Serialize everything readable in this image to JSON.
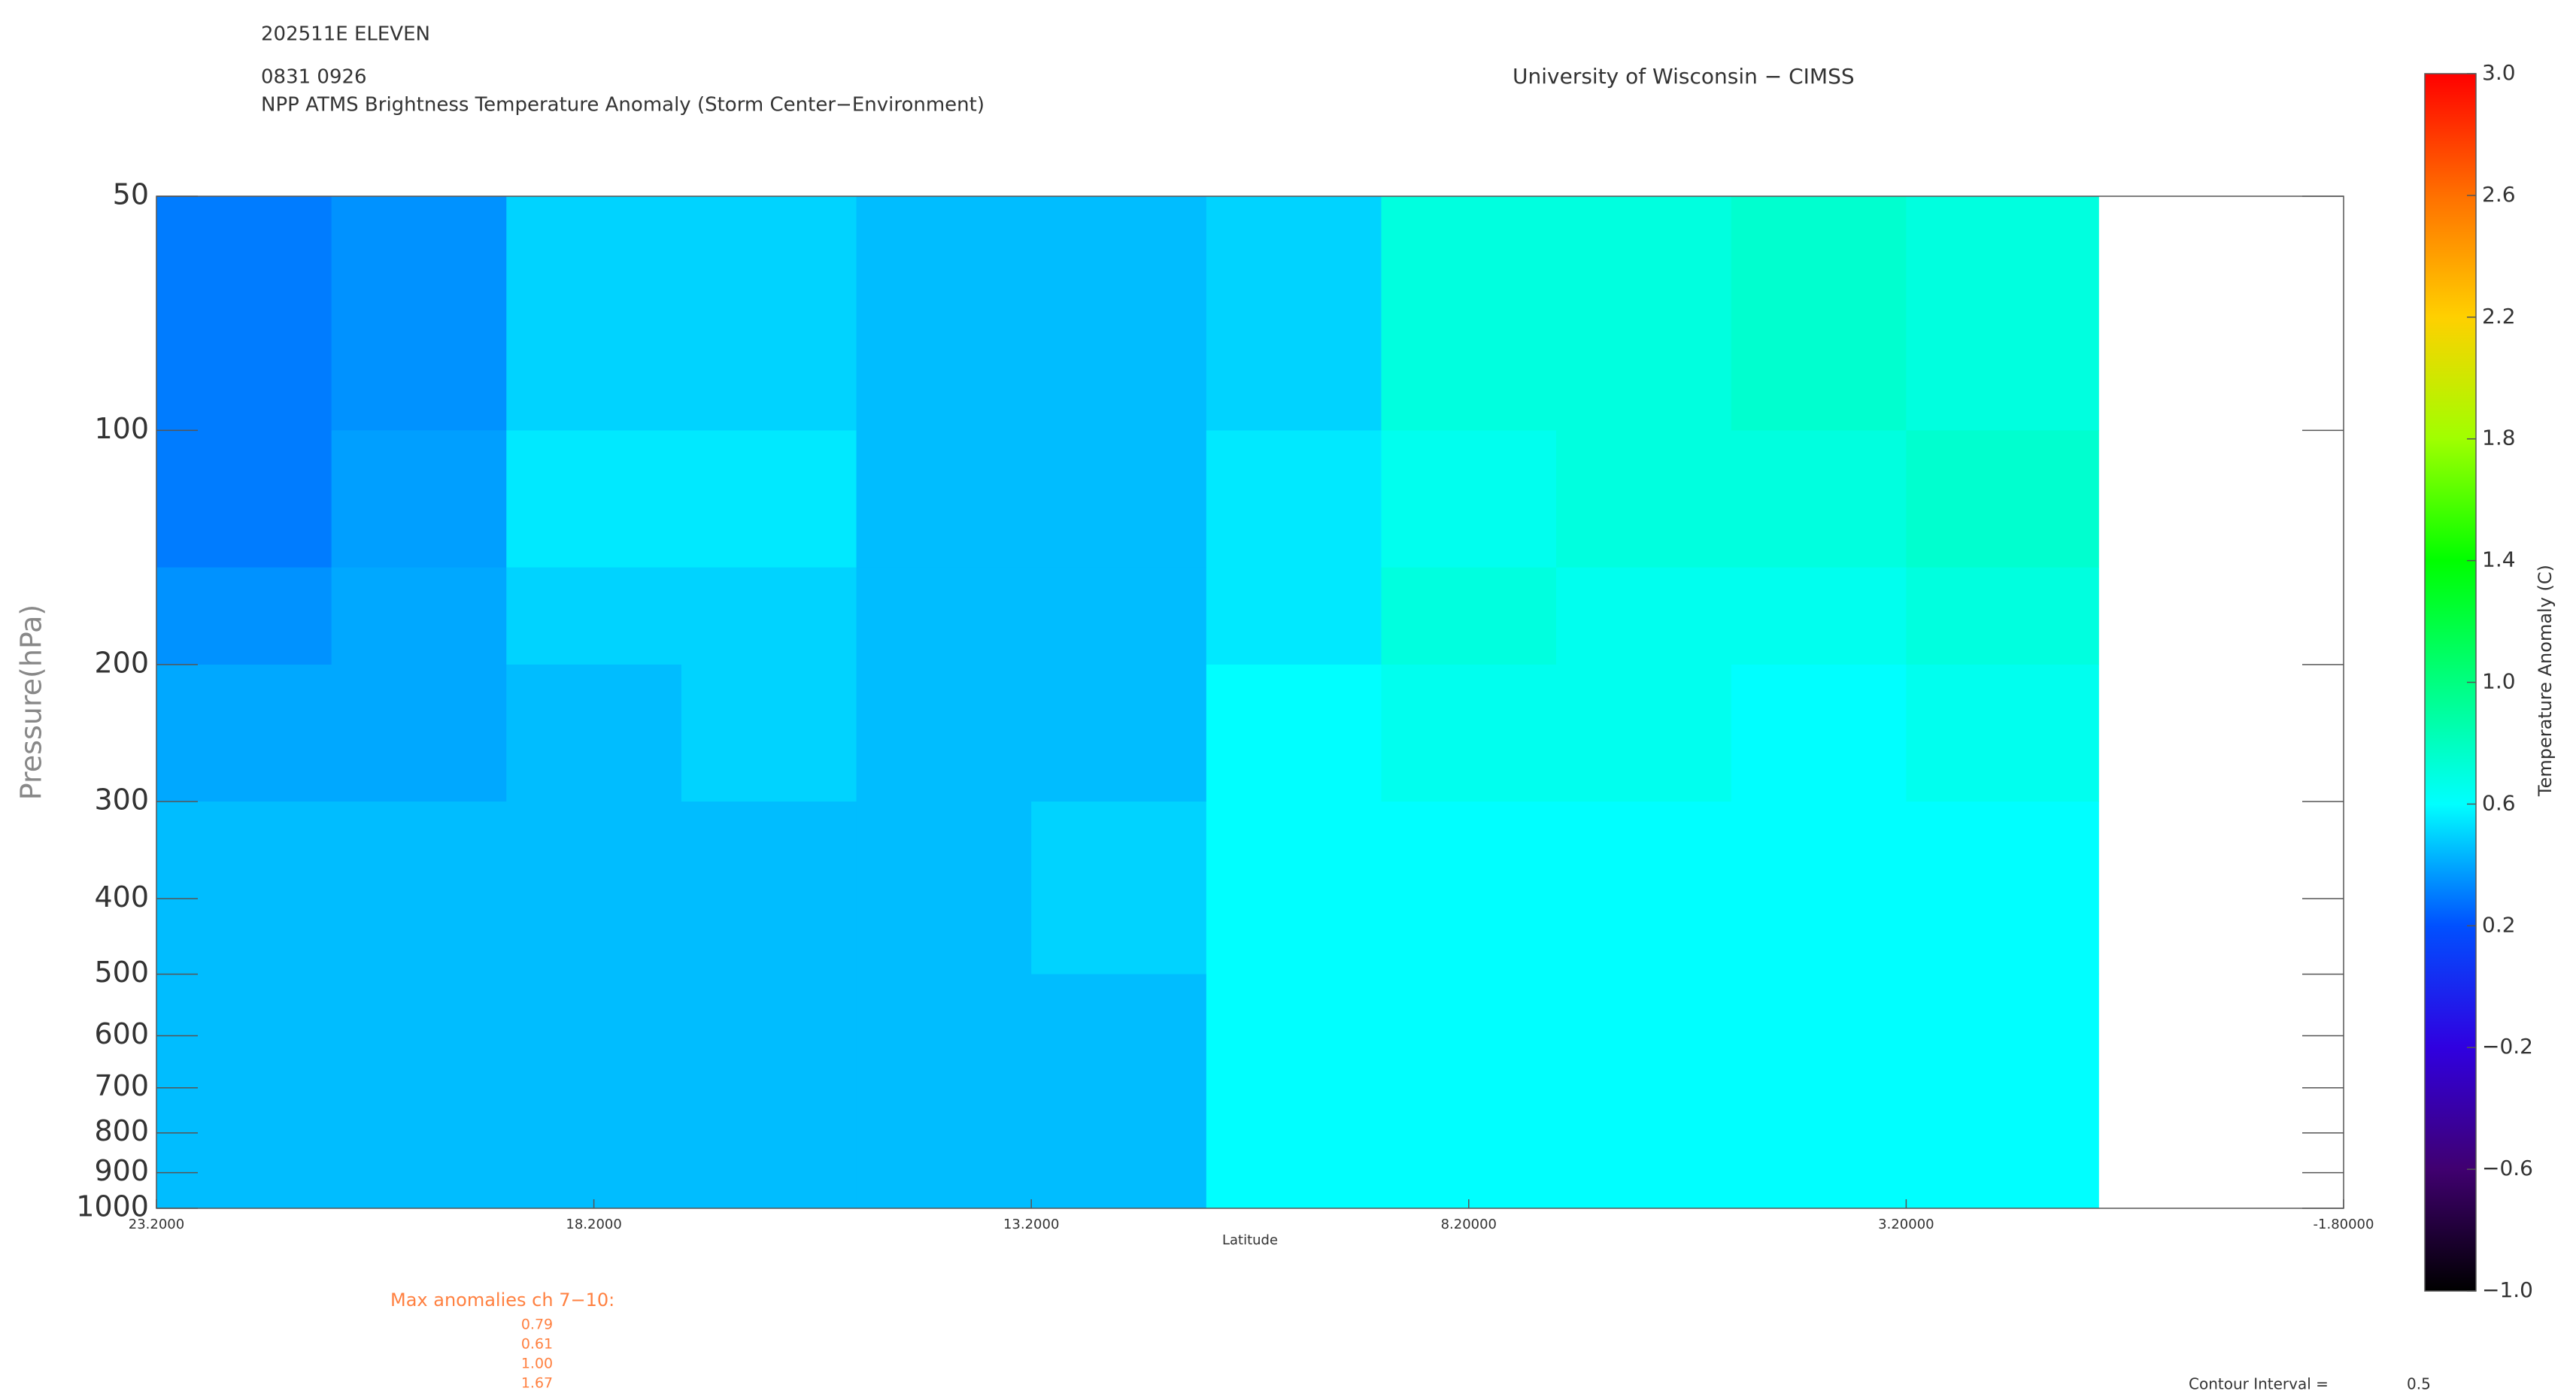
{
  "chart_data": {
    "type": "heatmap",
    "storm": "202511E ELEVEN",
    "date": "0831 0926",
    "title": "NPP ATMS Brightness Temperature Anomaly (Storm Center−Environment)",
    "source": "University of Wisconsin − CIMSS",
    "x_label": "Latitude",
    "y_label": "Pressure(hPa)",
    "colorbar_label": "Temperature Anomaly (C)",
    "xlim": [
      23.2,
      -1.8
    ],
    "xticks": [
      {
        "value": 23.2,
        "label": "23.2000"
      },
      {
        "value": 18.2,
        "label": "18.2000"
      },
      {
        "value": 13.2,
        "label": "13.2000"
      },
      {
        "value": 8.2,
        "label": "8.20000"
      },
      {
        "value": 3.2,
        "label": "3.20000"
      },
      {
        "value": -1.8,
        "label": "-1.80000"
      }
    ],
    "ylim": [
      1000,
      50
    ],
    "y_log": true,
    "yticks": [
      50,
      100,
      200,
      300,
      400,
      500,
      600,
      700,
      800,
      900,
      1000
    ],
    "x_edges": [
      23.2,
      21.2,
      19.2,
      17.2,
      15.2,
      13.2,
      11.2,
      9.2,
      7.2,
      5.2,
      3.2,
      1.0
    ],
    "y_edges": [
      50,
      100,
      150,
      200,
      300,
      500,
      1000
    ],
    "z": [
      [
        0.3,
        0.35,
        0.5,
        0.5,
        0.45,
        0.45,
        0.5,
        0.7,
        0.7,
        0.75,
        0.7
      ],
      [
        0.3,
        0.38,
        0.55,
        0.55,
        0.45,
        0.45,
        0.55,
        0.65,
        0.7,
        0.7,
        0.75
      ],
      [
        0.35,
        0.4,
        0.5,
        0.5,
        0.45,
        0.45,
        0.55,
        0.7,
        0.65,
        0.65,
        0.7
      ],
      [
        0.4,
        0.4,
        0.45,
        0.5,
        0.45,
        0.45,
        0.6,
        0.65,
        0.65,
        0.6,
        0.65
      ],
      [
        0.45,
        0.45,
        0.45,
        0.45,
        0.45,
        0.5,
        0.6,
        0.6,
        0.6,
        0.6,
        0.6
      ],
      [
        0.45,
        0.45,
        0.45,
        0.45,
        0.45,
        0.45,
        0.6,
        0.6,
        0.6,
        0.6,
        0.6
      ]
    ],
    "zlim": [
      -1,
      3
    ],
    "colormap": [
      "#000000",
      "#400070",
      "#3000e0",
      "#0050ff",
      "#00ffff",
      "#00ff80",
      "#00ff00",
      "#a0ff00",
      "#ffd000",
      "#ff7000",
      "#ff0000"
    ],
    "zticks": [
      {
        "value": -1,
        "label": "−1.0"
      },
      {
        "value": -0.6,
        "label": "−0.6"
      },
      {
        "value": -0.2,
        "label": "−0.2"
      },
      0.2,
      0.6,
      {
        "value": 1,
        "label": "1.0"
      },
      1.4,
      1.8,
      2.2,
      2.6,
      {
        "value": 3,
        "label": "3.0"
      }
    ],
    "max_anomalies": {
      "title": "Max anomalies ch 7−10:",
      "values": [
        0.79,
        0.61,
        1,
        1.67
      ],
      "value_labels": [
        "0.79",
        "0.61",
        "1.00",
        "1.67"
      ],
      "color": "#ff8040"
    },
    "contour_interval": {
      "label": "Contour Interval =",
      "value": 0.5
    }
  }
}
